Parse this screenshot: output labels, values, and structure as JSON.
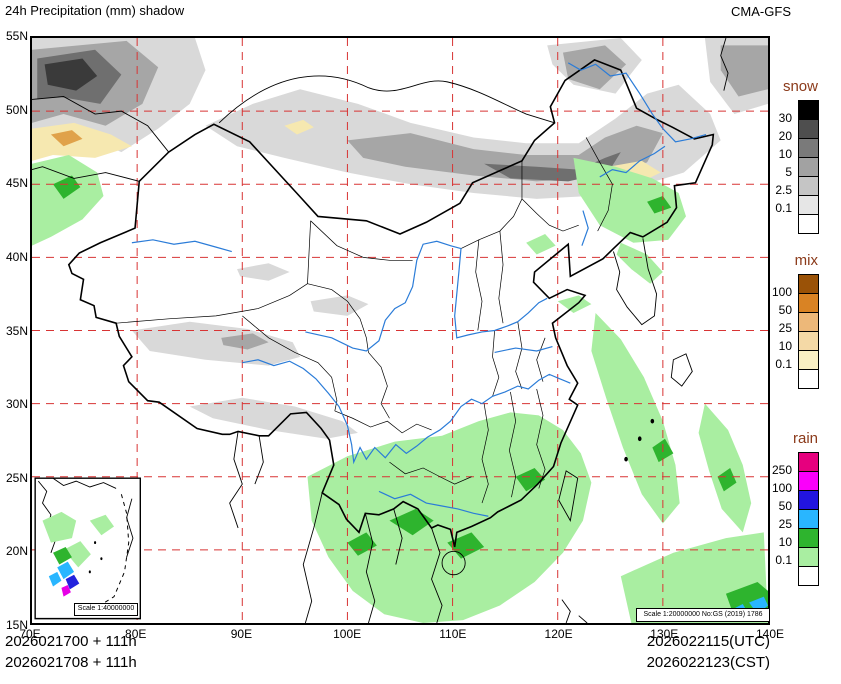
{
  "header": {
    "title": "24h Precipitation (mm) shadow",
    "model": "CMA-GFS"
  },
  "axes": {
    "x_ticks": [
      {
        "label": "70E",
        "lon": 70
      },
      {
        "label": "80E",
        "lon": 80
      },
      {
        "label": "90E",
        "lon": 90
      },
      {
        "label": "100E",
        "lon": 100
      },
      {
        "label": "110E",
        "lon": 110
      },
      {
        "label": "120E",
        "lon": 120
      },
      {
        "label": "130E",
        "lon": 130
      },
      {
        "label": "140E",
        "lon": 140
      }
    ],
    "y_ticks": [
      {
        "label": "15N",
        "lat": 15
      },
      {
        "label": "20N",
        "lat": 20
      },
      {
        "label": "25N",
        "lat": 25
      },
      {
        "label": "30N",
        "lat": 30
      },
      {
        "label": "35N",
        "lat": 35
      },
      {
        "label": "40N",
        "lat": 40
      },
      {
        "label": "45N",
        "lat": 45
      },
      {
        "label": "50N",
        "lat": 50
      },
      {
        "label": "55N",
        "lat": 55
      }
    ],
    "grid_color": "#d83434"
  },
  "legend": {
    "title_color": "#8b3a1a",
    "groups": [
      {
        "id": "snow",
        "title": "snow",
        "labels": [
          "30",
          "20",
          "10",
          "5",
          "2.5",
          "0.1"
        ],
        "colors": [
          "#000000",
          "#4e4e4e",
          "#7a7a7a",
          "#a2a2a2",
          "#c5c5c5",
          "#e6e6e6",
          "#ffffff"
        ]
      },
      {
        "id": "mix",
        "title": "mix",
        "labels": [
          "100",
          "50",
          "25",
          "10",
          "0.1"
        ],
        "colors": [
          "#9a5207",
          "#d98324",
          "#edb879",
          "#f4d9a6",
          "#faf0c4",
          "#ffffff"
        ]
      },
      {
        "id": "rain",
        "title": "rain",
        "labels": [
          "250",
          "100",
          "50",
          "25",
          "10",
          "0.1"
        ],
        "colors": [
          "#e6007e",
          "#fa00fa",
          "#2214e0",
          "#29b6ff",
          "#2eb42e",
          "#a9eea1",
          "#ffffff"
        ]
      }
    ]
  },
  "map": {
    "scale_label": "Scale 1:20000000 No:GS (2019) 1786",
    "inset_scale_label": "Scale 1:40000000"
  },
  "footer": {
    "left_line1": "2026021700 + 111h",
    "left_line2": "2026021708 + 111h",
    "right_line1": "2026022115(UTC)",
    "right_line2": "2026022123(CST)"
  }
}
